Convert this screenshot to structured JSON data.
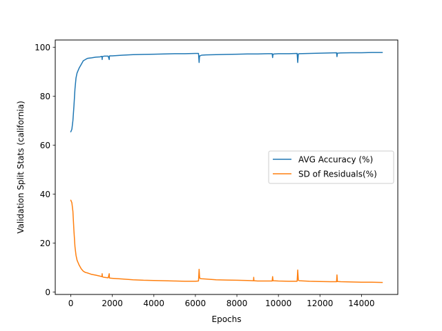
{
  "chart_data": {
    "type": "line",
    "title": "",
    "xlabel": "Epochs",
    "ylabel": "Validation Split Stats (california)",
    "xlim": [
      -750,
      15750
    ],
    "ylim": [
      -1,
      103
    ],
    "xticks": [
      0,
      2000,
      4000,
      6000,
      8000,
      10000,
      12000,
      14000
    ],
    "yticks": [
      0,
      20,
      40,
      60,
      80,
      100
    ],
    "grid": false,
    "legend_position": "center-right",
    "series": [
      {
        "name": "AVG Accuracy (%)",
        "color": "#1f77b4",
        "x": [
          0,
          50,
          100,
          150,
          200,
          250,
          300,
          350,
          400,
          500,
          600,
          700,
          800,
          1000,
          1200,
          1400,
          1500,
          1510,
          1520,
          1600,
          1800,
          1850,
          1860,
          1870,
          2000,
          2500,
          3000,
          3500,
          4000,
          4500,
          5000,
          5500,
          6000,
          6150,
          6180,
          6200,
          6220,
          6300,
          6500,
          7000,
          7500,
          8000,
          8500,
          9000,
          9500,
          9700,
          9720,
          9740,
          9800,
          10000,
          10500,
          10900,
          10930,
          10960,
          11000,
          11500,
          12000,
          12500,
          12800,
          12820,
          12840,
          13000,
          13500,
          14000,
          14500,
          15000
        ],
        "values": [
          65.5,
          66.5,
          70,
          76,
          83,
          87.5,
          89.5,
          90.5,
          91.5,
          93,
          94.5,
          95,
          95.5,
          95.7,
          96,
          96.1,
          96.3,
          95,
          96.2,
          96.4,
          96.4,
          95,
          96.3,
          96.5,
          96.5,
          96.8,
          97,
          97.1,
          97.2,
          97.3,
          97.4,
          97.4,
          97.5,
          97.5,
          93.8,
          96.5,
          96.5,
          96.8,
          96.9,
          97,
          97.1,
          97.2,
          97.3,
          97.3,
          97.4,
          97.4,
          95.8,
          97.2,
          97.3,
          97.4,
          97.4,
          97.5,
          93.8,
          97.3,
          97.4,
          97.5,
          97.6,
          97.7,
          97.8,
          96.2,
          97.6,
          97.7,
          97.8,
          97.8,
          97.9,
          97.9
        ]
      },
      {
        "name": "SD of Residuals(%)",
        "color": "#ff7f0e",
        "x": [
          0,
          50,
          100,
          150,
          200,
          250,
          300,
          350,
          400,
          500,
          600,
          700,
          800,
          900,
          1000,
          1200,
          1400,
          1500,
          1510,
          1520,
          1600,
          1800,
          1850,
          1860,
          1870,
          2000,
          2500,
          3000,
          3500,
          4000,
          4500,
          5000,
          5500,
          6000,
          6150,
          6180,
          6200,
          6220,
          6300,
          6500,
          7000,
          7500,
          8000,
          8500,
          8800,
          8810,
          8820,
          9000,
          9500,
          9700,
          9720,
          9740,
          10000,
          10500,
          10900,
          10930,
          10960,
          11000,
          11500,
          12000,
          12500,
          12800,
          12820,
          12840,
          13000,
          13500,
          14000,
          14500,
          15000
        ],
        "values": [
          37.5,
          36.5,
          33,
          25,
          18.5,
          15,
          13,
          12,
          11,
          9.5,
          8.5,
          8,
          7.8,
          7.5,
          7.2,
          6.9,
          6.5,
          6.3,
          7.5,
          6.2,
          6,
          5.8,
          7.5,
          5.8,
          5.7,
          5.6,
          5.3,
          5,
          4.8,
          4.7,
          4.6,
          4.5,
          4.4,
          4.4,
          4.5,
          9.3,
          6.3,
          5.5,
          5.4,
          5.3,
          5,
          4.9,
          4.8,
          4.7,
          4.6,
          6,
          4.6,
          4.5,
          4.5,
          4.5,
          6.3,
          4.6,
          4.5,
          4.4,
          4.4,
          9,
          4.8,
          4.6,
          4.4,
          4.3,
          4.2,
          4.2,
          7,
          4.3,
          4.2,
          4.1,
          4,
          4,
          3.9
        ]
      }
    ]
  }
}
